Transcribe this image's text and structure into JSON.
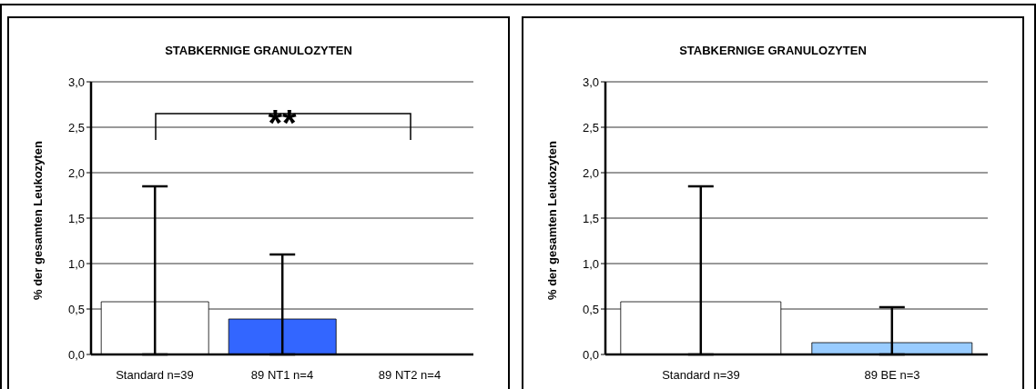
{
  "chart_data": [
    {
      "type": "bar",
      "title": "STABKERNIGE GRANULOZYTEN",
      "ylabel": "% der gesamten Leukozyten",
      "categories": [
        "Standard n=39",
        "89 NT1 n=4",
        "89 NT2 n=4"
      ],
      "values": [
        0.58,
        0.39,
        0
      ],
      "colors": [
        "#ffffff",
        "#3366ff",
        "#3366ff"
      ],
      "errors": [
        [
          0,
          1.85
        ],
        [
          0,
          1.1
        ],
        null
      ],
      "ylim": [
        0,
        3
      ],
      "yticks": [
        {
          "value": 0,
          "label": "0,0"
        },
        {
          "value": 0.5,
          "label": "0,5"
        },
        {
          "value": 1,
          "label": "1,0"
        },
        {
          "value": 1.5,
          "label": "1,5"
        },
        {
          "value": 2,
          "label": "2,0"
        },
        {
          "value": 2.5,
          "label": "2,5"
        },
        {
          "value": 3,
          "label": "3,0"
        }
      ],
      "grid": "y",
      "legend": false,
      "annotations": [
        "**"
      ]
    },
    {
      "type": "bar",
      "title": "STABKERNIGE GRANULOZYTEN",
      "ylabel": "% der gesamten Leukozyten",
      "categories": [
        "Standard n=39",
        "89 BE n=3"
      ],
      "values": [
        0.58,
        0.13
      ],
      "colors": [
        "#ffffff",
        "#99ccff"
      ],
      "errors": [
        [
          0,
          1.85
        ],
        [
          0,
          0.52
        ]
      ],
      "ylim": [
        0,
        3
      ],
      "yticks": [
        {
          "value": 0,
          "label": "0,0"
        },
        {
          "value": 0.5,
          "label": "0,5"
        },
        {
          "value": 1,
          "label": "1,0"
        },
        {
          "value": 1.5,
          "label": "1,5"
        },
        {
          "value": 2,
          "label": "2,0"
        },
        {
          "value": 2.5,
          "label": "2,5"
        },
        {
          "value": 3,
          "label": "3,0"
        }
      ],
      "grid": "y",
      "legend": false
    }
  ]
}
